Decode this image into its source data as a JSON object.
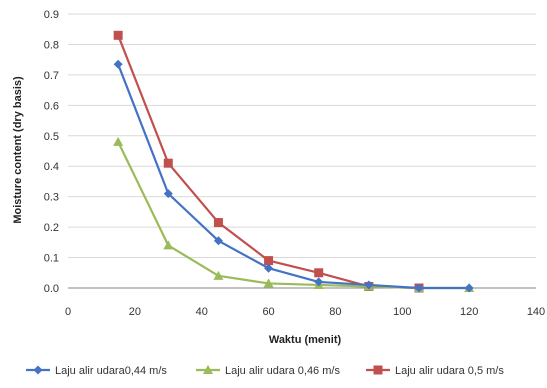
{
  "chart_data": {
    "type": "line",
    "title": "",
    "xlabel": "Waktu (menit)",
    "ylabel": "Moisture content (dry basis)",
    "xlim": [
      0,
      140
    ],
    "ylim": [
      0,
      0.9
    ],
    "xticks": [
      0,
      20,
      40,
      60,
      80,
      100,
      120,
      140
    ],
    "yticks": [
      "0.0",
      "0.1",
      "0.2",
      "0.3",
      "0.4",
      "0.5",
      "0.6",
      "0.7",
      "0.8",
      "0.9"
    ],
    "grid": "horizontal",
    "legend_position": "bottom",
    "series": [
      {
        "name": "Laju alir udara0,44 m/s",
        "color": "#4472c4",
        "marker": "diamond",
        "x": [
          15,
          30,
          45,
          60,
          75,
          90,
          105,
          120
        ],
        "y": [
          0.735,
          0.31,
          0.155,
          0.065,
          0.02,
          0.01,
          0.0,
          0.0
        ]
      },
      {
        "name": "Laju alir udara 0,46 m/s",
        "color": "#9bbb59",
        "marker": "triangle",
        "x": [
          15,
          30,
          45,
          60,
          75,
          90,
          105,
          120
        ],
        "y": [
          0.48,
          0.14,
          0.04,
          0.015,
          0.01,
          0.005,
          0.0,
          0.0
        ]
      },
      {
        "name": "Laju alir udara 0,5 m/s",
        "color": "#c0504d",
        "marker": "square",
        "x": [
          15,
          30,
          45,
          60,
          75,
          90,
          105
        ],
        "y": [
          0.83,
          0.41,
          0.215,
          0.09,
          0.05,
          0.005,
          0.0
        ]
      }
    ]
  }
}
